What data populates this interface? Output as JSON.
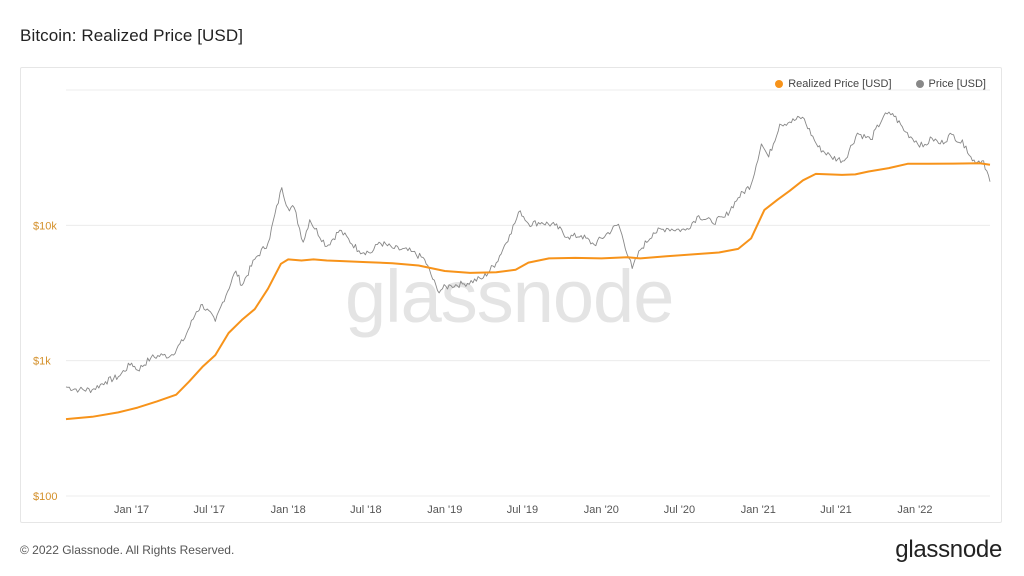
{
  "title": "Bitcoin: Realized Price [USD]",
  "watermark": "glassnode",
  "footer": {
    "copyright": "© 2022 Glassnode. All Rights Reserved.",
    "logo": "glassnode"
  },
  "legend": [
    {
      "label": "Realized Price [USD]",
      "color": "#f7931a"
    },
    {
      "label": "Price [USD]",
      "color": "#888888"
    }
  ],
  "chart_data": {
    "type": "line",
    "title": "Bitcoin: Realized Price [USD]",
    "y_scale": "log",
    "ylim": [
      100,
      100000
    ],
    "y_ticks": [
      {
        "value": 100,
        "label": "$100"
      },
      {
        "value": 1000,
        "label": "$1k"
      },
      {
        "value": 10000,
        "label": "$10k"
      }
    ],
    "xlim": [
      "2016-08-01",
      "2022-06-25"
    ],
    "x_ticks": [
      {
        "date": "2017-01-01",
        "label": "Jan '17"
      },
      {
        "date": "2017-07-01",
        "label": "Jul '17"
      },
      {
        "date": "2018-01-01",
        "label": "Jan '18"
      },
      {
        "date": "2018-07-01",
        "label": "Jul '18"
      },
      {
        "date": "2019-01-01",
        "label": "Jan '19"
      },
      {
        "date": "2019-07-01",
        "label": "Jul '19"
      },
      {
        "date": "2020-01-01",
        "label": "Jan '20"
      },
      {
        "date": "2020-07-01",
        "label": "Jul '20"
      },
      {
        "date": "2021-01-01",
        "label": "Jan '21"
      },
      {
        "date": "2021-07-01",
        "label": "Jul '21"
      },
      {
        "date": "2022-01-01",
        "label": "Jan '22"
      }
    ],
    "grid": true,
    "legend_position": "top-right",
    "series": [
      {
        "name": "Realized Price [USD]",
        "color": "#f7931a",
        "points": [
          [
            "2016-08-01",
            370
          ],
          [
            "2016-10-01",
            385
          ],
          [
            "2016-12-01",
            415
          ],
          [
            "2017-01-15",
            450
          ],
          [
            "2017-03-01",
            500
          ],
          [
            "2017-04-15",
            560
          ],
          [
            "2017-05-15",
            700
          ],
          [
            "2017-06-15",
            900
          ],
          [
            "2017-07-15",
            1100
          ],
          [
            "2017-08-15",
            1600
          ],
          [
            "2017-09-15",
            2000
          ],
          [
            "2017-10-15",
            2400
          ],
          [
            "2017-11-15",
            3400
          ],
          [
            "2017-12-15",
            5200
          ],
          [
            "2018-01-01",
            5600
          ],
          [
            "2018-02-01",
            5500
          ],
          [
            "2018-03-01",
            5600
          ],
          [
            "2018-04-01",
            5500
          ],
          [
            "2018-05-01",
            5450
          ],
          [
            "2018-07-01",
            5350
          ],
          [
            "2018-09-01",
            5250
          ],
          [
            "2018-11-01",
            5050
          ],
          [
            "2019-01-01",
            4600
          ],
          [
            "2019-03-01",
            4450
          ],
          [
            "2019-05-01",
            4500
          ],
          [
            "2019-06-15",
            4700
          ],
          [
            "2019-07-15",
            5300
          ],
          [
            "2019-09-01",
            5700
          ],
          [
            "2019-11-01",
            5750
          ],
          [
            "2020-01-01",
            5700
          ],
          [
            "2020-03-01",
            5800
          ],
          [
            "2020-04-01",
            5700
          ],
          [
            "2020-06-01",
            5900
          ],
          [
            "2020-08-01",
            6100
          ],
          [
            "2020-10-01",
            6300
          ],
          [
            "2020-11-15",
            6700
          ],
          [
            "2020-12-15",
            8000
          ],
          [
            "2021-01-15",
            13000
          ],
          [
            "2021-02-15",
            15500
          ],
          [
            "2021-03-15",
            18000
          ],
          [
            "2021-04-15",
            21500
          ],
          [
            "2021-05-15",
            24000
          ],
          [
            "2021-06-15",
            23800
          ],
          [
            "2021-07-15",
            23600
          ],
          [
            "2021-08-15",
            23800
          ],
          [
            "2021-09-15",
            25000
          ],
          [
            "2021-11-01",
            26500
          ],
          [
            "2021-12-15",
            28500
          ],
          [
            "2022-02-01",
            28500
          ],
          [
            "2022-04-01",
            28600
          ],
          [
            "2022-06-01",
            28800
          ],
          [
            "2022-06-25",
            28000
          ]
        ]
      },
      {
        "name": "Price [USD]",
        "color": "#888888",
        "points": [
          [
            "2016-08-01",
            640
          ],
          [
            "2016-09-01",
            610
          ],
          [
            "2016-10-01",
            610
          ],
          [
            "2016-11-01",
            700
          ],
          [
            "2016-12-01",
            760
          ],
          [
            "2017-01-01",
            960
          ],
          [
            "2017-01-15",
            850
          ],
          [
            "2017-02-15",
            1050
          ],
          [
            "2017-03-15",
            1100
          ],
          [
            "2017-04-01",
            1080
          ],
          [
            "2017-05-01",
            1400
          ],
          [
            "2017-06-01",
            2300
          ],
          [
            "2017-06-15",
            2600
          ],
          [
            "2017-07-15",
            1950
          ],
          [
            "2017-08-01",
            2700
          ],
          [
            "2017-09-01",
            4600
          ],
          [
            "2017-09-15",
            3600
          ],
          [
            "2017-10-15",
            5600
          ],
          [
            "2017-11-15",
            7400
          ],
          [
            "2017-12-17",
            19000
          ],
          [
            "2017-12-31",
            13500
          ],
          [
            "2018-01-15",
            13500
          ],
          [
            "2018-02-05",
            7500
          ],
          [
            "2018-02-20",
            11000
          ],
          [
            "2018-04-01",
            7000
          ],
          [
            "2018-05-01",
            9200
          ],
          [
            "2018-06-15",
            6500
          ],
          [
            "2018-07-15",
            6300
          ],
          [
            "2018-08-01",
            7500
          ],
          [
            "2018-09-01",
            6800
          ],
          [
            "2018-10-15",
            6400
          ],
          [
            "2018-11-15",
            5600
          ],
          [
            "2018-12-15",
            3300
          ],
          [
            "2019-01-15",
            3600
          ],
          [
            "2019-02-15",
            3700
          ],
          [
            "2019-04-01",
            4100
          ],
          [
            "2019-05-01",
            5300
          ],
          [
            "2019-06-01",
            8500
          ],
          [
            "2019-06-26",
            12800
          ],
          [
            "2019-07-15",
            10300
          ],
          [
            "2019-08-15",
            10500
          ],
          [
            "2019-09-15",
            10000
          ],
          [
            "2019-10-15",
            8200
          ],
          [
            "2019-11-15",
            8400
          ],
          [
            "2019-12-15",
            7200
          ],
          [
            "2020-02-10",
            10200
          ],
          [
            "2020-03-13",
            4800
          ],
          [
            "2020-04-01",
            6600
          ],
          [
            "2020-05-01",
            8800
          ],
          [
            "2020-06-01",
            9500
          ],
          [
            "2020-07-15",
            9200
          ],
          [
            "2020-08-15",
            11800
          ],
          [
            "2020-09-15",
            10500
          ],
          [
            "2020-10-15",
            11500
          ],
          [
            "2020-11-15",
            16000
          ],
          [
            "2020-12-15",
            20000
          ],
          [
            "2021-01-08",
            40000
          ],
          [
            "2021-01-25",
            32000
          ],
          [
            "2021-02-20",
            56000
          ],
          [
            "2021-03-15",
            58000
          ],
          [
            "2021-04-14",
            63000
          ],
          [
            "2021-05-20",
            38000
          ],
          [
            "2021-06-20",
            32000
          ],
          [
            "2021-07-20",
            30000
          ],
          [
            "2021-08-20",
            48000
          ],
          [
            "2021-09-20",
            43000
          ],
          [
            "2021-10-20",
            64000
          ],
          [
            "2021-11-10",
            67000
          ],
          [
            "2021-12-10",
            49000
          ],
          [
            "2022-01-20",
            38000
          ],
          [
            "2022-02-10",
            44000
          ],
          [
            "2022-03-01",
            40000
          ],
          [
            "2022-03-28",
            47000
          ],
          [
            "2022-04-30",
            38500
          ],
          [
            "2022-05-15",
            30000
          ],
          [
            "2022-06-10",
            30000
          ],
          [
            "2022-06-25",
            21000
          ]
        ]
      }
    ]
  }
}
